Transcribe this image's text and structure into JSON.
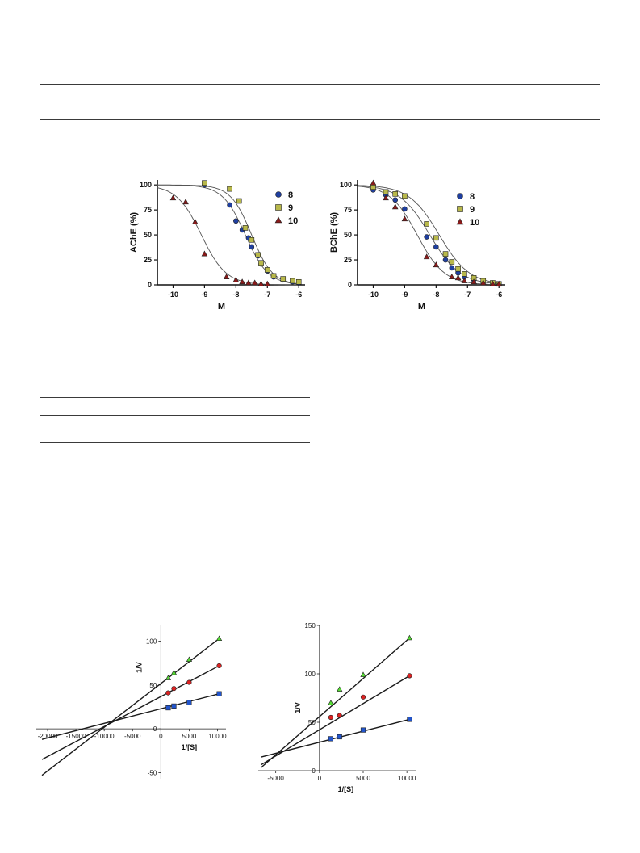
{
  "chart_data": [
    {
      "type": "scatter",
      "xlabel": "M",
      "ylabel": "AChE (%)",
      "xlim": [
        -10.5,
        -5.8
      ],
      "ylim": [
        0,
        105
      ],
      "xticks": [
        "-10",
        "-9",
        "-8",
        "-7",
        "-6"
      ],
      "xtick_values": [
        -10,
        -9,
        -8,
        -7,
        -6
      ],
      "yticks": [
        "0",
        "25",
        "50",
        "75",
        "100"
      ],
      "ytick_values": [
        0,
        25,
        50,
        75,
        100
      ],
      "legend_position": "top-right",
      "series": [
        {
          "name": "8",
          "color": "#1f3fa0",
          "marker": "circle",
          "fit": {
            "bottom": 0,
            "top": 100,
            "logIC50": -7.7,
            "hill": 1.2
          },
          "points": [
            [
              -9,
              100
            ],
            [
              -8.2,
              80
            ],
            [
              -8,
              64
            ],
            [
              -7.8,
              55
            ],
            [
              -7.6,
              47
            ],
            [
              -7.5,
              38
            ],
            [
              -7.3,
              29
            ],
            [
              -7.2,
              21
            ],
            [
              -7.0,
              14
            ],
            [
              -6.8,
              8
            ],
            [
              -6.5,
              5
            ],
            [
              -6.2,
              3
            ],
            [
              -6.0,
              2
            ]
          ]
        },
        {
          "name": "9",
          "color": "#b8b84a",
          "marker": "square",
          "fit": {
            "bottom": 0,
            "top": 100,
            "logIC50": -7.5,
            "hill": 1.3
          },
          "points": [
            [
              -9,
              102
            ],
            [
              -8.2,
              96
            ],
            [
              -7.9,
              84
            ],
            [
              -7.7,
              57
            ],
            [
              -7.5,
              45
            ],
            [
              -7.3,
              30
            ],
            [
              -7.2,
              22
            ],
            [
              -7.0,
              15
            ],
            [
              -6.8,
              9
            ],
            [
              -6.5,
              6
            ],
            [
              -6.2,
              4
            ],
            [
              -6.0,
              3
            ]
          ]
        },
        {
          "name": "10",
          "color": "#8b1a1a",
          "marker": "triangle",
          "fit": {
            "bottom": 0,
            "top": 100,
            "logIC50": -9.1,
            "hill": 1.1
          },
          "points": [
            [
              -10,
              87
            ],
            [
              -9.6,
              83
            ],
            [
              -9.3,
              63
            ],
            [
              -9,
              31
            ],
            [
              -8.3,
              8
            ],
            [
              -8,
              5
            ],
            [
              -7.8,
              3
            ],
            [
              -7.6,
              2
            ],
            [
              -7.4,
              2
            ],
            [
              -7.2,
              1
            ],
            [
              -7,
              1
            ]
          ]
        }
      ]
    },
    {
      "type": "scatter",
      "xlabel": "M",
      "ylabel": "BChE (%)",
      "xlim": [
        -10.5,
        -5.8
      ],
      "ylim": [
        0,
        105
      ],
      "xticks": [
        "-10",
        "-9",
        "-8",
        "-7",
        "-6"
      ],
      "xtick_values": [
        -10,
        -9,
        -8,
        -7,
        -6
      ],
      "yticks": [
        "0",
        "25",
        "50",
        "75",
        "100"
      ],
      "ytick_values": [
        0,
        25,
        50,
        75,
        100
      ],
      "legend_position": "top-right",
      "series": [
        {
          "name": "8",
          "color": "#1f3fa0",
          "marker": "circle",
          "fit": {
            "bottom": 0,
            "top": 100,
            "logIC50": -8.2,
            "hill": 0.9
          },
          "points": [
            [
              -10,
              95
            ],
            [
              -9.6,
              90
            ],
            [
              -9.3,
              85
            ],
            [
              -9,
              76
            ],
            [
              -8.3,
              48
            ],
            [
              -8,
              38
            ],
            [
              -7.7,
              25
            ],
            [
              -7.5,
              17
            ],
            [
              -7.3,
              12
            ],
            [
              -7.1,
              8
            ],
            [
              -6.8,
              5
            ],
            [
              -6.5,
              3
            ],
            [
              -6.2,
              2
            ],
            [
              -6,
              1
            ]
          ]
        },
        {
          "name": "9",
          "color": "#b8b84a",
          "marker": "square",
          "fit": {
            "bottom": 0,
            "top": 100,
            "logIC50": -7.9,
            "hill": 0.9
          },
          "points": [
            [
              -10,
              98
            ],
            [
              -9.6,
              93
            ],
            [
              -9.3,
              91
            ],
            [
              -9,
              89
            ],
            [
              -8.3,
              61
            ],
            [
              -8,
              47
            ],
            [
              -7.7,
              31
            ],
            [
              -7.5,
              23
            ],
            [
              -7.3,
              16
            ],
            [
              -7.1,
              11
            ],
            [
              -6.8,
              7
            ],
            [
              -6.5,
              4
            ],
            [
              -6.2,
              2
            ],
            [
              -6,
              1
            ]
          ]
        },
        {
          "name": "10",
          "color": "#8b1a1a",
          "marker": "triangle",
          "fit": {
            "bottom": 0,
            "top": 100,
            "logIC50": -8.6,
            "hill": 1.0
          },
          "points": [
            [
              -10,
              102
            ],
            [
              -9.6,
              87
            ],
            [
              -9.3,
              78
            ],
            [
              -9,
              66
            ],
            [
              -8.3,
              28
            ],
            [
              -8,
              20
            ],
            [
              -7.5,
              8
            ],
            [
              -7.3,
              7
            ],
            [
              -7.1,
              4
            ],
            [
              -6.8,
              3
            ],
            [
              -6.5,
              2
            ],
            [
              -6.2,
              1
            ],
            [
              -6,
              1
            ]
          ]
        }
      ]
    },
    {
      "type": "scatter",
      "xlabel": "1/[S]",
      "ylabel": "1/V",
      "xlim": [
        -22000,
        11500
      ],
      "ylim": [
        -57,
        118
      ],
      "xticks": [
        "-20000",
        "-15000",
        "-10000",
        "-5000",
        "0",
        "5000",
        "10000"
      ],
      "xtick_values": [
        -20000,
        -15000,
        -10000,
        -5000,
        0,
        5000,
        10000
      ],
      "yticks": [
        "-50",
        "0",
        "50",
        "100"
      ],
      "ytick_values": [
        -50,
        0,
        50,
        100
      ],
      "series": [
        {
          "color": "#55dd33",
          "marker": "triangle",
          "line": {
            "x1": -21000,
            "y1": -53,
            "x2": 10300,
            "y2": 103
          },
          "points": [
            [
              1300,
              58
            ],
            [
              2300,
              64
            ],
            [
              5000,
              79
            ],
            [
              10300,
              103
            ]
          ]
        },
        {
          "color": "#dd2222",
          "marker": "circle",
          "line": {
            "x1": -21000,
            "y1": -35,
            "x2": 10300,
            "y2": 72
          },
          "points": [
            [
              1300,
              41
            ],
            [
              2300,
              46
            ],
            [
              5000,
              53
            ],
            [
              10300,
              72
            ]
          ]
        },
        {
          "color": "#2255cc",
          "marker": "square",
          "line": {
            "x1": -21000,
            "y1": -12,
            "x2": 10300,
            "y2": 40
          },
          "points": [
            [
              1300,
              24
            ],
            [
              2300,
              26
            ],
            [
              5000,
              30
            ],
            [
              10300,
              40
            ]
          ]
        }
      ]
    },
    {
      "type": "scatter",
      "xlabel": "1/[S]",
      "ylabel": "1/V",
      "xlim": [
        -7000,
        11000
      ],
      "ylim": [
        0,
        150
      ],
      "xticks": [
        "-5000",
        "0",
        "5000",
        "10000"
      ],
      "xtick_values": [
        -5000,
        0,
        5000,
        10000
      ],
      "yticks": [
        "0",
        "50",
        "100",
        "150"
      ],
      "ytick_values": [
        0,
        50,
        100,
        150
      ],
      "series": [
        {
          "color": "#55dd33",
          "marker": "triangle",
          "line": {
            "x1": -6700,
            "y1": 3,
            "x2": 10300,
            "y2": 137
          },
          "points": [
            [
              1300,
              70
            ],
            [
              2300,
              84
            ],
            [
              5000,
              99
            ],
            [
              10300,
              137
            ]
          ]
        },
        {
          "color": "#dd2222",
          "marker": "circle",
          "line": {
            "x1": -6700,
            "y1": 6,
            "x2": 10300,
            "y2": 98
          },
          "points": [
            [
              1300,
              55
            ],
            [
              2300,
              57
            ],
            [
              5000,
              76
            ],
            [
              10300,
              98
            ]
          ]
        },
        {
          "color": "#2255cc",
          "marker": "square",
          "line": {
            "x1": -6700,
            "y1": 14,
            "x2": 10300,
            "y2": 53
          },
          "points": [
            [
              1300,
              33
            ],
            [
              2300,
              35
            ],
            [
              5000,
              42
            ],
            [
              10300,
              53
            ]
          ]
        }
      ]
    }
  ]
}
